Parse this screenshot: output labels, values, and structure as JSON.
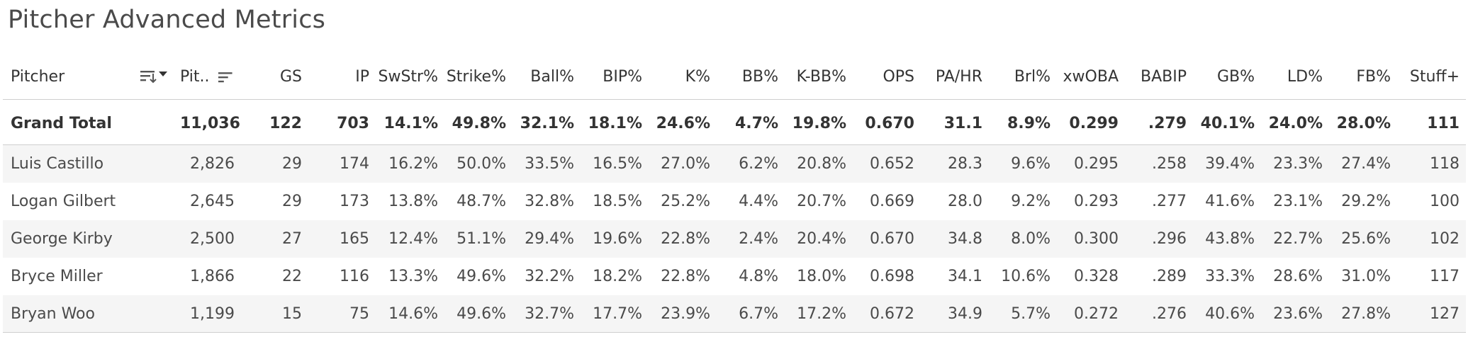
{
  "title": "Pitcher Advanced Metrics",
  "columns": [
    "Pitcher",
    "Pit..",
    "GS",
    "IP",
    "SwStr%",
    "Strike%",
    "Ball%",
    "BIP%",
    "K%",
    "BB%",
    "K-BB%",
    "OPS",
    "PA/HR",
    "Brl%",
    "xwOBA",
    "BABIP",
    "GB%",
    "LD%",
    "FB%",
    "Stuff+"
  ],
  "icons": {
    "pitcher_sort": "sort-descending-icon",
    "pitches_sort": "sort-icon",
    "dropdown": "caret-down-icon"
  },
  "total": {
    "label": "Grand Total",
    "values": [
      "11,036",
      "122",
      "703",
      "14.1%",
      "49.8%",
      "32.1%",
      "18.1%",
      "24.6%",
      "4.7%",
      "19.8%",
      "0.670",
      "31.1",
      "8.9%",
      "0.299",
      ".279",
      "40.1%",
      "24.0%",
      "28.0%",
      "111"
    ]
  },
  "rows": [
    {
      "name": "Luis Castillo",
      "values": [
        "2,826",
        "29",
        "174",
        "16.2%",
        "50.0%",
        "33.5%",
        "16.5%",
        "27.0%",
        "6.2%",
        "20.8%",
        "0.652",
        "28.3",
        "9.6%",
        "0.295",
        ".258",
        "39.4%",
        "23.3%",
        "27.4%",
        "118"
      ]
    },
    {
      "name": "Logan Gilbert",
      "values": [
        "2,645",
        "29",
        "173",
        "13.8%",
        "48.7%",
        "32.8%",
        "18.5%",
        "25.2%",
        "4.4%",
        "20.7%",
        "0.669",
        "28.0",
        "9.2%",
        "0.293",
        ".277",
        "41.6%",
        "23.1%",
        "29.2%",
        "100"
      ]
    },
    {
      "name": "George Kirby",
      "values": [
        "2,500",
        "27",
        "165",
        "12.4%",
        "51.1%",
        "29.4%",
        "19.6%",
        "22.8%",
        "2.4%",
        "20.4%",
        "0.670",
        "34.8",
        "8.0%",
        "0.300",
        ".296",
        "43.8%",
        "22.7%",
        "25.6%",
        "102"
      ]
    },
    {
      "name": "Bryce Miller",
      "values": [
        "1,866",
        "22",
        "116",
        "13.3%",
        "49.6%",
        "32.2%",
        "18.2%",
        "22.8%",
        "4.8%",
        "18.0%",
        "0.698",
        "34.1",
        "10.6%",
        "0.328",
        ".289",
        "33.3%",
        "28.6%",
        "31.0%",
        "117"
      ]
    },
    {
      "name": "Bryan Woo",
      "values": [
        "1,199",
        "15",
        "75",
        "14.6%",
        "49.6%",
        "32.7%",
        "17.7%",
        "23.9%",
        "6.7%",
        "17.2%",
        "0.672",
        "34.9",
        "5.7%",
        "0.272",
        ".276",
        "40.6%",
        "23.6%",
        "27.8%",
        "127"
      ]
    }
  ]
}
